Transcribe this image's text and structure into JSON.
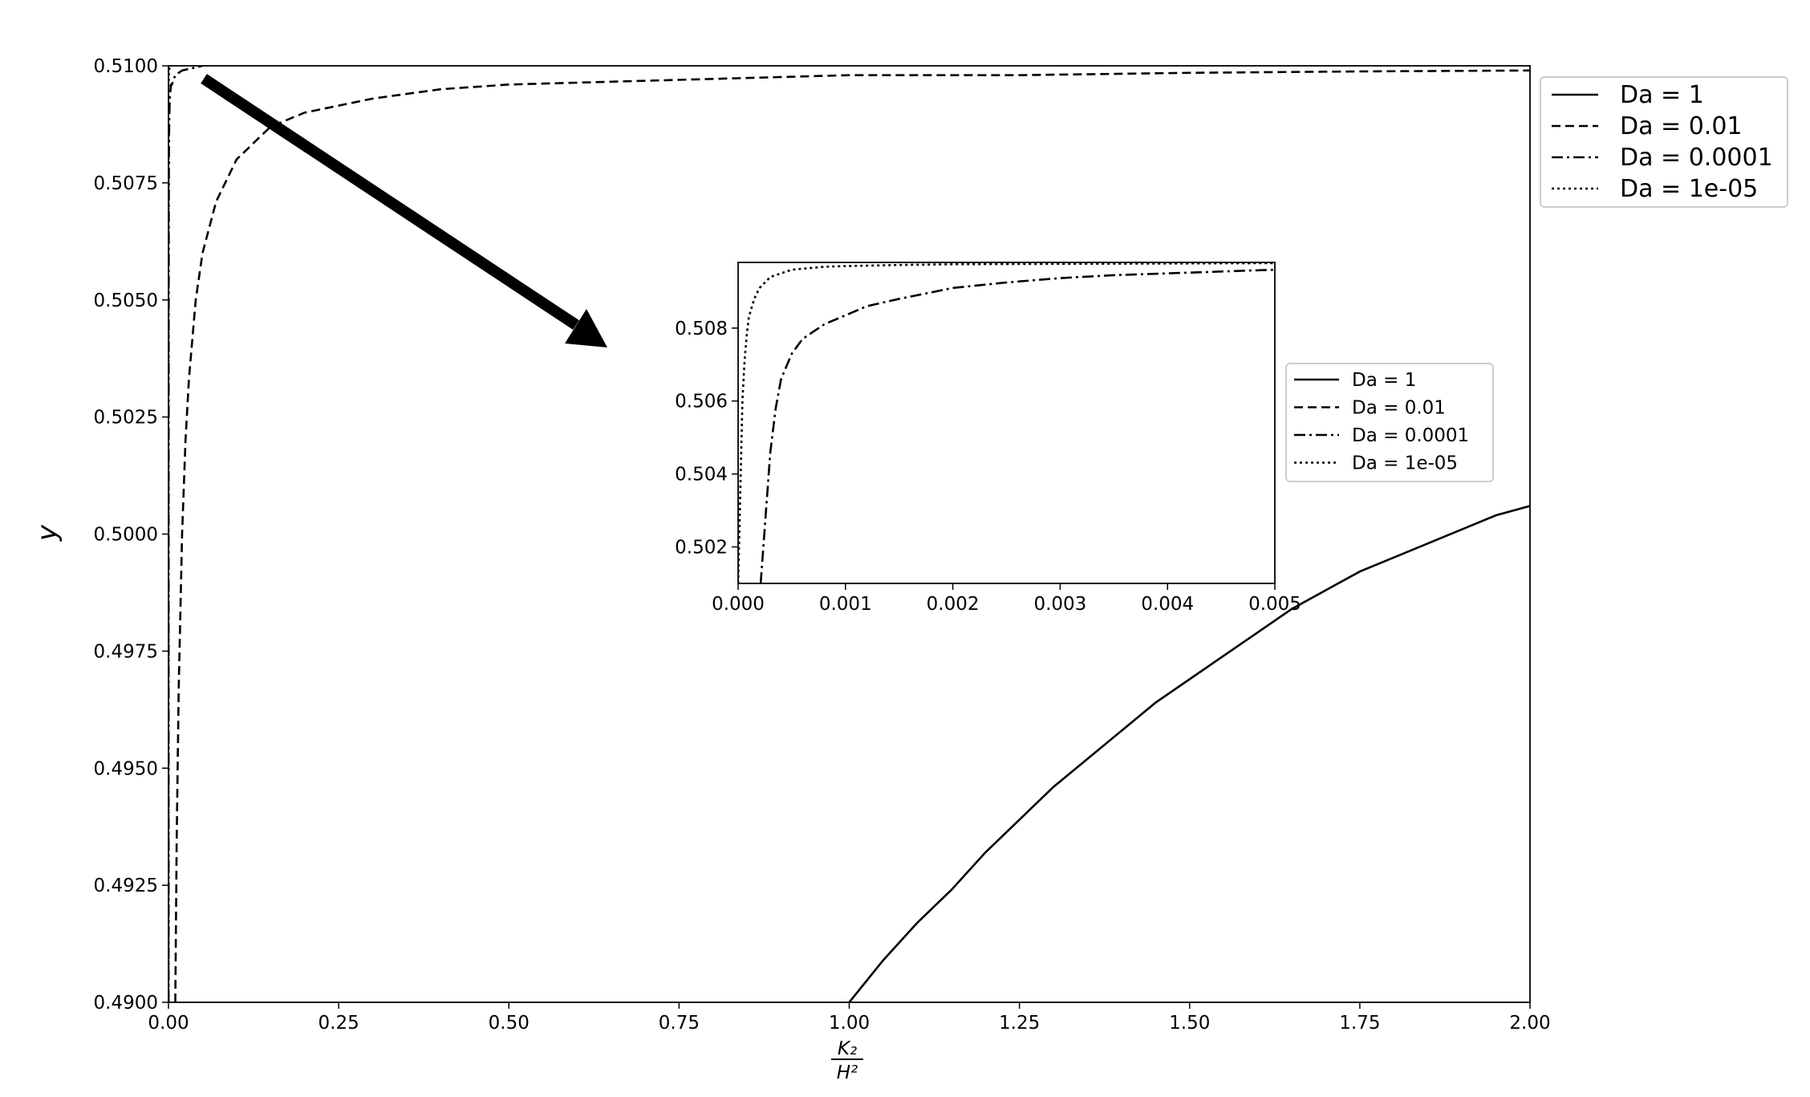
{
  "chart_data": [
    {
      "type": "line",
      "panel": "main",
      "ylabel": "y",
      "xlabel_fraction": {
        "numerator": "K₂",
        "denominator": "H²"
      },
      "xlim": [
        0,
        2.0
      ],
      "ylim": [
        0.49,
        0.51
      ],
      "xticks": [
        0.0,
        0.25,
        0.5,
        0.75,
        1.0,
        1.25,
        1.5,
        1.75,
        2.0
      ],
      "xtick_labels": [
        "0.00",
        "0.25",
        "0.50",
        "0.75",
        "1.00",
        "1.25",
        "1.50",
        "1.75",
        "2.00"
      ],
      "yticks": [
        0.49,
        0.4925,
        0.495,
        0.4975,
        0.5,
        0.5025,
        0.505,
        0.5075,
        0.51
      ],
      "ytick_labels": [
        "0.4900",
        "0.4925",
        "0.4950",
        "0.4975",
        "0.5000",
        "0.5025",
        "0.5050",
        "0.5075",
        "0.5100"
      ],
      "grid": false,
      "legend_position": "outside-right-top",
      "series": [
        {
          "name": "Da = 1",
          "dash": "solid",
          "x": [
            1.0,
            1.05,
            1.1,
            1.15,
            1.2,
            1.25,
            1.3,
            1.35,
            1.4,
            1.45,
            1.5,
            1.55,
            1.6,
            1.65,
            1.7,
            1.75,
            1.8,
            1.85,
            1.9,
            1.95,
            2.0
          ],
          "y": [
            0.49,
            0.4909,
            0.4917,
            0.4924,
            0.4932,
            0.4939,
            0.4946,
            0.4952,
            0.4958,
            0.4964,
            0.4969,
            0.4974,
            0.4979,
            0.4984,
            0.4988,
            0.4992,
            0.4995,
            0.4998,
            0.5001,
            0.5004,
            0.5006
          ]
        },
        {
          "name": "Da = 0.01",
          "dash": "dashed",
          "x": [
            0.01,
            0.012,
            0.015,
            0.02,
            0.025,
            0.03,
            0.04,
            0.05,
            0.07,
            0.1,
            0.15,
            0.2,
            0.3,
            0.4,
            0.5,
            0.75,
            1.0,
            1.25,
            1.5,
            1.75,
            2.0
          ],
          "y": [
            0.49,
            0.4934,
            0.4967,
            0.5,
            0.502,
            0.5033,
            0.505,
            0.506,
            0.5071,
            0.508,
            0.5087,
            0.509,
            0.5093,
            0.5095,
            0.5096,
            0.5097,
            0.5098,
            0.5098,
            0.50985,
            0.50988,
            0.5099
          ]
        },
        {
          "name": "Da = 0.0001",
          "dash": "dashdot",
          "x": [
            0.00015,
            0.0002,
            0.0003,
            0.0004,
            0.0005,
            0.0006,
            0.0008,
            0.001,
            0.0015,
            0.002,
            0.003,
            0.004,
            0.005,
            0.01,
            0.02,
            0.05
          ],
          "y": [
            0.49,
            0.5,
            0.5044,
            0.5063,
            0.5072,
            0.5078,
            0.5085,
            0.5087,
            0.5091,
            0.5093,
            0.5095,
            0.5096,
            0.5096,
            0.5098,
            0.5099,
            0.51
          ]
        },
        {
          "name": "Da = 1e-05",
          "dash": "dotted",
          "x": [
            0.0,
            2e-05,
            5e-05,
            0.0001,
            0.00015,
            0.0002,
            0.0003,
            0.0005,
            0.001,
            0.002,
            0.005
          ],
          "y": [
            0.49,
            0.5,
            0.5078,
            0.5088,
            0.5092,
            0.5094,
            0.5096,
            0.5098,
            0.5099,
            0.51,
            0.51
          ]
        }
      ]
    },
    {
      "type": "line",
      "panel": "inset",
      "xlim": [
        0,
        0.005
      ],
      "ylim": [
        0.501,
        0.5098
      ],
      "xticks": [
        0.0,
        0.001,
        0.002,
        0.003,
        0.004,
        0.005
      ],
      "xtick_labels": [
        "0.000",
        "0.001",
        "0.002",
        "0.003",
        "0.004",
        "0.005"
      ],
      "yticks": [
        0.502,
        0.504,
        0.506,
        0.508
      ],
      "ytick_labels": [
        "0.502",
        "0.504",
        "0.506",
        "0.508"
      ],
      "grid": false,
      "legend_position": "outside-right-center",
      "series": [
        {
          "name": "Da = 1",
          "dash": "solid",
          "x": [],
          "y": []
        },
        {
          "name": "Da = 0.01",
          "dash": "dashed",
          "x": [],
          "y": []
        },
        {
          "name": "Da = 0.0001",
          "dash": "dashdot",
          "x": [
            0.00021,
            0.00025,
            0.0003,
            0.00035,
            0.0004,
            0.0005,
            0.0006,
            0.0007,
            0.0008,
            0.001,
            0.0012,
            0.0015,
            0.002,
            0.0025,
            0.003,
            0.0035,
            0.004,
            0.0045,
            0.005
          ],
          "y": [
            0.501,
            0.5026,
            0.5046,
            0.5058,
            0.5066,
            0.5073,
            0.5077,
            0.5079,
            0.5081,
            0.50835,
            0.5086,
            0.5088,
            0.5091,
            0.50925,
            0.50937,
            0.50945,
            0.5095,
            0.50955,
            0.5096
          ]
        },
        {
          "name": "Da = 1e-05",
          "dash": "dotted",
          "x": [
            0.0,
            2e-05,
            4e-05,
            6e-05,
            8e-05,
            0.0001,
            0.00015,
            0.0002,
            0.0003,
            0.0005,
            0.0008,
            0.001,
            0.0015,
            0.002,
            0.003,
            0.004,
            0.005
          ],
          "y": [
            0.501,
            0.5035,
            0.506,
            0.5071,
            0.5078,
            0.5083,
            0.5088,
            0.5091,
            0.5094,
            0.5096,
            0.50968,
            0.5097,
            0.50973,
            0.50975,
            0.50976,
            0.50977,
            0.50978
          ]
        }
      ]
    }
  ],
  "colors": {
    "line": "#000000",
    "frame": "#000000",
    "legend_border": "#cccccc",
    "background": "#ffffff"
  }
}
